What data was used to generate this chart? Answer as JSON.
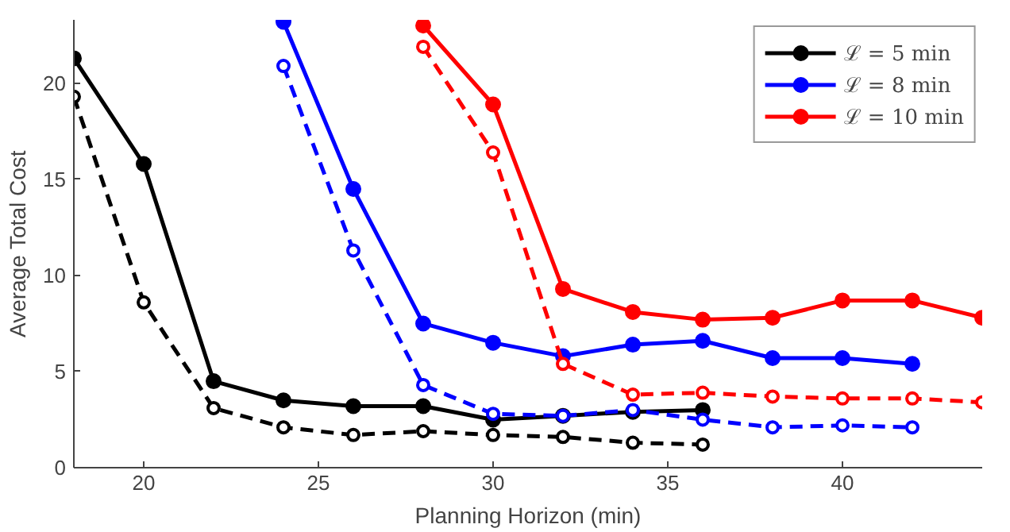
{
  "chart_data": {
    "type": "line",
    "xlabel": "Planning Horizon (min)",
    "ylabel": "Average Total Cost",
    "xlim": [
      18,
      44
    ],
    "ylim": [
      0,
      23.3
    ],
    "xticks": [
      20,
      25,
      30,
      35,
      40
    ],
    "yticks": [
      0,
      5,
      10,
      15,
      20
    ],
    "grid": false,
    "legend": "top right",
    "marker": "circle",
    "series": [
      {
        "name": "ℒ = 5 min",
        "color": "#000000",
        "line_style": "solid",
        "x": [
          18,
          20,
          22,
          24,
          26,
          28,
          30,
          32,
          34,
          36
        ],
        "values": [
          21.3,
          15.8,
          4.5,
          3.5,
          3.2,
          3.2,
          2.5,
          2.7,
          2.9,
          3.0
        ]
      },
      {
        "color": "#000000",
        "line_style": "dashed",
        "x": [
          18,
          20,
          22,
          24,
          26,
          28,
          30,
          32,
          34,
          36
        ],
        "values": [
          19.3,
          8.6,
          3.1,
          2.1,
          1.7,
          1.9,
          1.7,
          1.6,
          1.3,
          1.2
        ]
      },
      {
        "name": "ℒ = 8 min",
        "color": "#0000ff",
        "line_style": "solid",
        "x": [
          24,
          26,
          28,
          30,
          32,
          34,
          36,
          38,
          40,
          42
        ],
        "values": [
          23.2,
          14.5,
          7.5,
          6.5,
          5.8,
          6.4,
          6.6,
          5.7,
          5.7,
          5.4
        ]
      },
      {
        "color": "#0000ff",
        "line_style": "dashed",
        "x": [
          24,
          26,
          28,
          30,
          32,
          34,
          36,
          38,
          40,
          42
        ],
        "values": [
          20.9,
          11.3,
          4.3,
          2.8,
          2.7,
          3.0,
          2.5,
          2.1,
          2.2,
          2.1
        ]
      },
      {
        "name": "ℒ = 10 min",
        "color": "#ff0000",
        "line_style": "solid",
        "x": [
          28,
          30,
          32,
          34,
          36,
          38,
          40,
          42,
          44
        ],
        "values": [
          23.0,
          18.9,
          9.3,
          8.1,
          7.7,
          7.8,
          8.7,
          8.7,
          7.8
        ]
      },
      {
        "color": "#ff0000",
        "line_style": "dashed",
        "x": [
          28,
          30,
          32,
          34,
          36,
          38,
          40,
          42,
          44
        ],
        "values": [
          21.9,
          16.4,
          5.4,
          3.8,
          3.9,
          3.7,
          3.6,
          3.6,
          3.4
        ]
      }
    ]
  }
}
